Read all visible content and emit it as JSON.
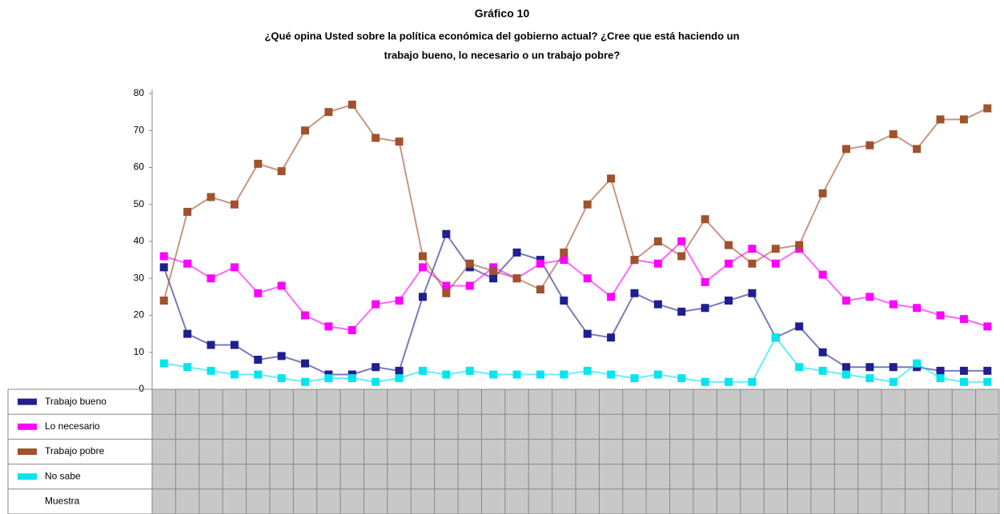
{
  "chart_data": {
    "type": "line",
    "title": "Gráfico 10",
    "subtitle": [
      "¿Qué opina Usted sobre la política económica del gobierno actual? ¿Cree que está haciendo un",
      "trabajo bueno, lo necesario o un trabajo pobre?"
    ],
    "categories": [
      null,
      null,
      null,
      null,
      null,
      null,
      null,
      null,
      null,
      null,
      null,
      null,
      null,
      null,
      null,
      null,
      null,
      null,
      null,
      null,
      null,
      null,
      null,
      null,
      null,
      null,
      null,
      null,
      null,
      null,
      null,
      null,
      null,
      null,
      null,
      null
    ],
    "ylim": [
      0,
      80
    ],
    "yticks": [
      0,
      10,
      20,
      30,
      40,
      50,
      60,
      70,
      80
    ],
    "series": [
      {
        "name": "Trabajo bueno",
        "color": "#1f1f8f",
        "values": [
          33,
          15,
          12,
          12,
          8,
          9,
          7,
          4,
          4,
          6,
          5,
          25,
          42,
          33,
          30,
          37,
          35,
          24,
          15,
          14,
          26,
          23,
          21,
          22,
          24,
          26,
          14,
          17,
          10,
          6,
          6,
          6,
          6,
          5,
          5,
          5
        ]
      },
      {
        "name": "Lo necesario",
        "color": "#ff00ff",
        "values": [
          36,
          34,
          30,
          33,
          26,
          28,
          20,
          17,
          16,
          23,
          24,
          33,
          28,
          28,
          33,
          30,
          34,
          35,
          30,
          25,
          35,
          34,
          40,
          29,
          34,
          38,
          34,
          38,
          31,
          24,
          25,
          23,
          22,
          20,
          19,
          17
        ]
      },
      {
        "name": "Trabajo pobre",
        "color": "#a0522d",
        "values": [
          24,
          48,
          52,
          50,
          61,
          59,
          70,
          75,
          77,
          68,
          67,
          36,
          26,
          34,
          32,
          30,
          27,
          37,
          50,
          57,
          35,
          40,
          36,
          46,
          39,
          34,
          38,
          39,
          53,
          65,
          66,
          69,
          65,
          73,
          73,
          76
        ]
      },
      {
        "name": "No sabe",
        "color": "#00e5ee",
        "values": [
          7,
          6,
          5,
          4,
          4,
          3,
          2,
          3,
          3,
          2,
          3,
          5,
          4,
          5,
          4,
          4,
          4,
          4,
          5,
          4,
          3,
          4,
          3,
          2,
          2,
          2,
          14,
          6,
          5,
          4,
          3,
          2,
          7,
          3,
          2,
          2
        ]
      }
    ],
    "table_rows": [
      "Muestra"
    ]
  }
}
